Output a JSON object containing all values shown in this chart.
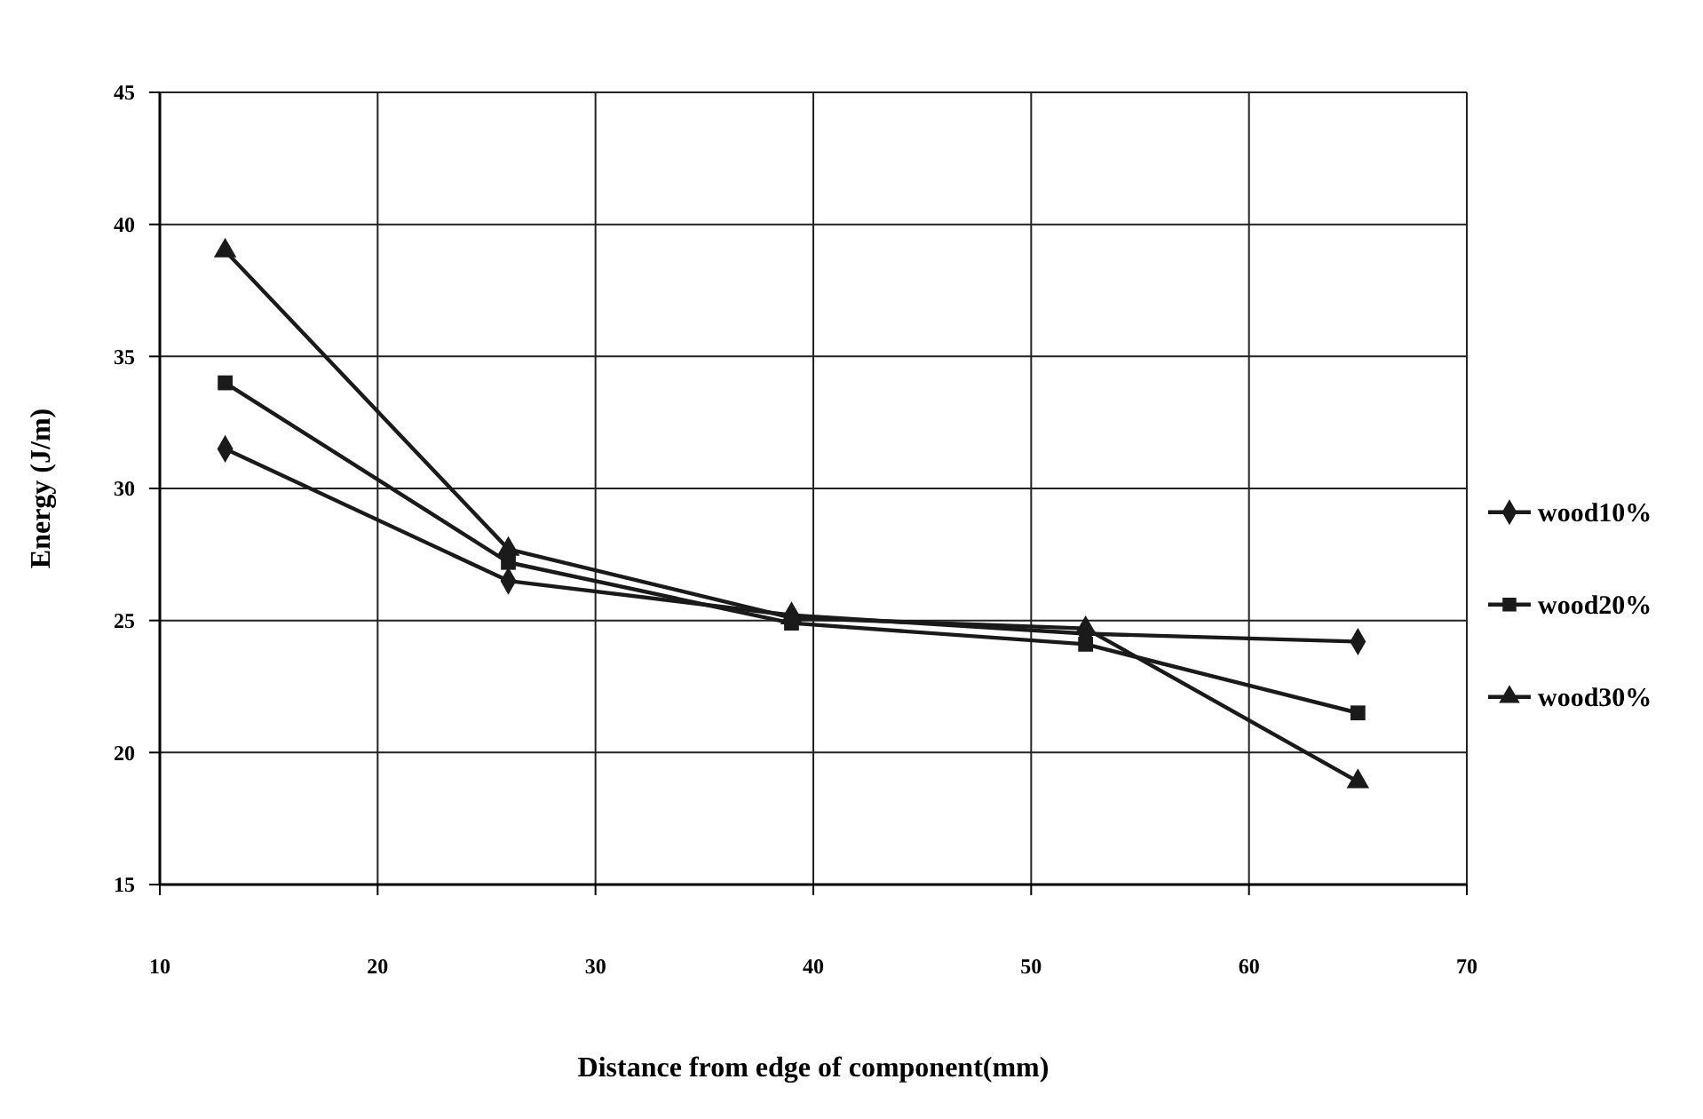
{
  "chart_data": {
    "type": "line",
    "xlabel": "Distance from edge of component(mm)",
    "ylabel": "Energy (J/m)",
    "x": [
      13,
      26,
      39,
      52.5,
      65
    ],
    "series": [
      {
        "name": "wood10%",
        "color": "#1a1a1a",
        "marker": "diamond",
        "values": [
          31.5,
          26.5,
          25.2,
          24.5,
          24.2
        ]
      },
      {
        "name": "wood20%",
        "color": "#1a1a1a",
        "marker": "square",
        "values": [
          34,
          27.2,
          24.9,
          24.1,
          21.5
        ]
      },
      {
        "name": "wood30%",
        "color": "#1a1a1a",
        "marker": "triangle",
        "values": [
          39,
          27.7,
          25.1,
          24.7,
          18.9
        ]
      }
    ],
    "xlim": [
      10,
      70
    ],
    "xticks": [
      10,
      20,
      30,
      40,
      50,
      60,
      70
    ],
    "ylim": [
      15,
      45
    ],
    "yticks": [
      15,
      20,
      25,
      30,
      35,
      40,
      45
    ],
    "grid": true,
    "legend": "right",
    "line_style": "solid"
  }
}
